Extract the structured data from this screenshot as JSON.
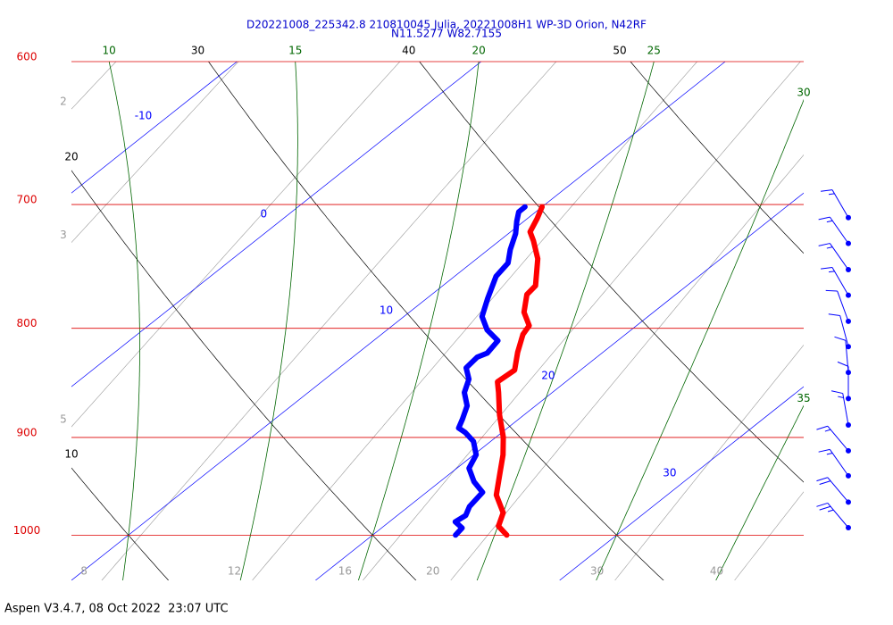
{
  "chart_data": {
    "type": "skewt",
    "title": "D20221008_225342.8 210810045 Julia, 20221008H1 WP-3D Orion, N42RF",
    "subtitle": "N11.5277 W82.7155",
    "footer": "Aspen V3.4.7, 08 Oct 2022  23:07 UTC",
    "log_scale": true,
    "ylim": [
      1050,
      600
    ],
    "yticks": [
      600,
      700,
      800,
      900,
      1000
    ],
    "isobar_color": "#dd0000",
    "xlim": [
      10,
      40
    ],
    "isotherms": {
      "values": [
        -10,
        0,
        10,
        20,
        30
      ],
      "color": "#0000ff"
    },
    "dry_adiabats": {
      "values": [
        10,
        20,
        30,
        40,
        50
      ],
      "color": "#000000"
    },
    "moist_adiabats": {
      "values": [
        10,
        15,
        20,
        25,
        30,
        35
      ],
      "color": "#006600"
    },
    "mixing_ratios": {
      "values": [
        2,
        3,
        5,
        8,
        12,
        16,
        20,
        30,
        40
      ],
      "color": "#999999"
    },
    "series": [
      {
        "color": "#ff0000",
        "pressure": [
          1000,
          990.4,
          976.2,
          957.6,
          934.9,
          917.0,
          899.7,
          878.4,
          857.4,
          847.5,
          836.9,
          820.9,
          805.3,
          797.7,
          786.3,
          771.4,
          764.1,
          742.2,
          728.0,
          721.0,
          710.7,
          701.8
        ],
        "values": [
          25.5,
          24.7,
          24.2,
          23.0,
          22.0,
          21.2,
          20.3,
          19.0,
          17.8,
          17.2,
          17.3,
          16.5,
          15.8,
          15.6,
          14.7,
          13.9,
          13.8,
          12.5,
          11.4,
          10.8,
          10.4,
          10.0
        ]
      },
      {
        "color": "#0000ff",
        "pressure": [
          1000,
          992.3,
          985.7,
          979.0,
          969.7,
          954.9,
          944.0,
          930.4,
          917.0,
          903.9,
          895.2,
          890.9,
          882.5,
          869.8,
          857.4,
          845.2,
          834.9,
          825.3,
          821.7,
          810.8,
          801.4,
          789.9,
          774.7,
          756.4,
          745.6,
          734.9,
          722.4,
          712.7,
          705.6,
          701.8
        ],
        "values": [
          23.4,
          23.3,
          22.7,
          22.8,
          22.5,
          22.3,
          21.4,
          20.5,
          20.1,
          19.3,
          18.5,
          18.0,
          17.7,
          17.2,
          16.4,
          15.9,
          15.2,
          15.1,
          15.3,
          15.1,
          14.1,
          13.2,
          12.5,
          11.7,
          11.5,
          10.9,
          10.3,
          9.7,
          9.3,
          9.3
        ]
      }
    ],
    "winds": {
      "color": "#0000ff",
      "pressure": [
        710,
        730,
        751,
        772,
        794,
        816,
        839,
        863,
        888,
        913,
        938,
        965,
        992
      ],
      "direction": [
        330,
        325,
        325,
        330,
        340,
        345,
        355,
        0,
        350,
        320,
        325,
        320,
        320
      ],
      "speed": [
        15,
        15,
        15,
        15,
        10,
        10,
        10,
        10,
        15,
        15,
        15,
        20,
        25
      ]
    }
  }
}
